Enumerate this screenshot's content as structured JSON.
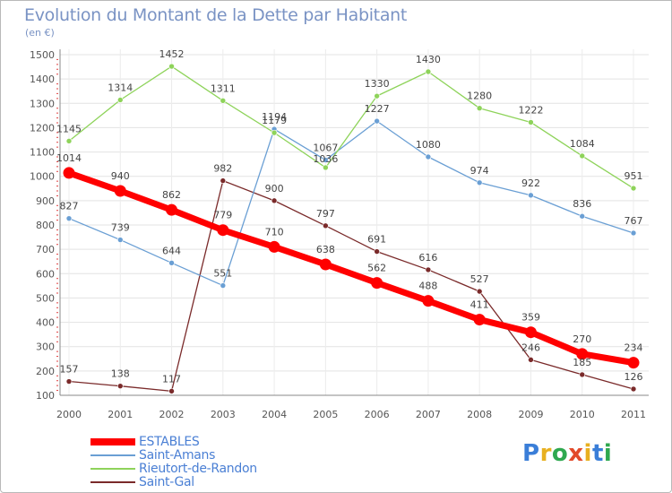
{
  "header": {
    "title": "Evolution du Montant de la Dette par Habitant",
    "subtitle": "(en €)"
  },
  "logo": {
    "text": "Proxiti",
    "letters": [
      "P",
      "r",
      "o",
      "x",
      "i",
      "t",
      "i"
    ],
    "colors": [
      "#3a7ed8",
      "#e8b020",
      "#2fa84f",
      "#e24a2a",
      "#e8b020",
      "#3a7ed8",
      "#2fa84f"
    ]
  },
  "chart_data": {
    "type": "line",
    "title": "Evolution du Montant de la Dette par Habitant",
    "subtitle": "(en €)",
    "xlabel": "",
    "ylabel": "",
    "categories": [
      "2000",
      "2001",
      "2002",
      "2003",
      "2004",
      "2005",
      "2006",
      "2007",
      "2008",
      "2009",
      "2010",
      "2011"
    ],
    "yticks": [
      100,
      200,
      300,
      400,
      500,
      600,
      700,
      800,
      900,
      1000,
      1100,
      1200,
      1300,
      1400,
      1500
    ],
    "ylim": [
      100,
      1500
    ],
    "grid": true,
    "legend_position": "bottom-left",
    "series": [
      {
        "name": "Saint-Gal",
        "color": "#7a2a2a",
        "values": [
          157,
          138,
          117,
          982,
          900,
          797,
          691,
          616,
          527,
          246,
          185,
          126
        ]
      },
      {
        "name": "Saint-Amans",
        "color": "#6a9fd4",
        "values": [
          827,
          739,
          644,
          551,
          1194,
          1067,
          1227,
          1080,
          974,
          922,
          836,
          767
        ]
      },
      {
        "name": "Rieutort-de-Randon",
        "color": "#8ed35a",
        "values": [
          1145,
          1314,
          1452,
          1311,
          1179,
          1036,
          1330,
          1430,
          1280,
          1222,
          1084,
          951
        ]
      },
      {
        "name": "ESTABLES",
        "color": "#ff0000",
        "values": [
          1014,
          940,
          862,
          779,
          710,
          638,
          562,
          488,
          411,
          359,
          270,
          234
        ]
      }
    ],
    "legend_order": [
      "ESTABLES",
      "Saint-Amans",
      "Rieutort-de-Randon",
      "Saint-Gal"
    ]
  }
}
